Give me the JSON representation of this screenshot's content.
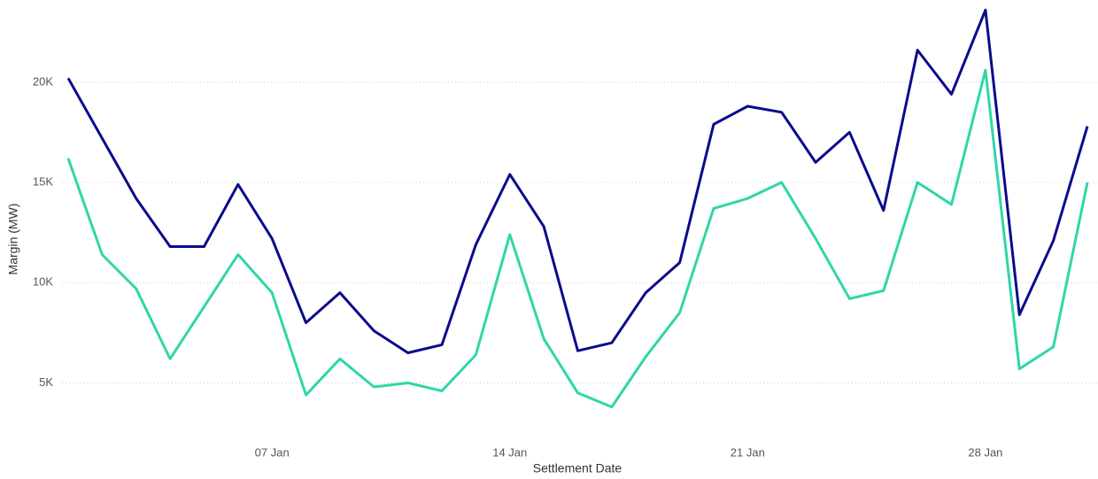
{
  "chart_data": {
    "type": "line",
    "x_label": "Settlement Date",
    "y_label": "Margin (MW)",
    "x": [
      "01 Jan",
      "02 Jan",
      "03 Jan",
      "04 Jan",
      "05 Jan",
      "06 Jan",
      "07 Jan",
      "08 Jan",
      "09 Jan",
      "10 Jan",
      "11 Jan",
      "12 Jan",
      "13 Jan",
      "14 Jan",
      "15 Jan",
      "16 Jan",
      "17 Jan",
      "18 Jan",
      "19 Jan",
      "20 Jan",
      "21 Jan",
      "22 Jan",
      "23 Jan",
      "24 Jan",
      "25 Jan",
      "26 Jan",
      "27 Jan",
      "28 Jan",
      "29 Jan",
      "30 Jan",
      "31 Jan"
    ],
    "xticks": [
      "07 Jan",
      "14 Jan",
      "21 Jan",
      "28 Jan"
    ],
    "ylim": [
      2900,
      24100
    ],
    "yticks": [
      {
        "value": 5000,
        "label": "5K"
      },
      {
        "value": 10000,
        "label": "10K"
      },
      {
        "value": 15000,
        "label": "15K"
      },
      {
        "value": 20000,
        "label": "20K"
      }
    ],
    "grid": true,
    "series": [
      {
        "color": "#0b0b8c",
        "values": [
          20200,
          17200,
          14200,
          11800,
          11800,
          14900,
          12200,
          8000,
          9500,
          7600,
          6500,
          6900,
          11900,
          15400,
          12800,
          6600,
          7000,
          9500,
          11000,
          17900,
          18800,
          18500,
          16000,
          17500,
          13600,
          21600,
          19400,
          23600,
          8400,
          12100,
          17800
        ]
      },
      {
        "color": "#2fd6aa",
        "values": [
          16200,
          11400,
          9700,
          6200,
          8800,
          11400,
          9500,
          4400,
          6200,
          4800,
          5000,
          4600,
          6400,
          12400,
          7200,
          4500,
          3800,
          6300,
          8500,
          13700,
          14200,
          15000,
          12200,
          9200,
          9600,
          15000,
          13900,
          20600,
          5700,
          6800,
          15000
        ]
      }
    ]
  }
}
